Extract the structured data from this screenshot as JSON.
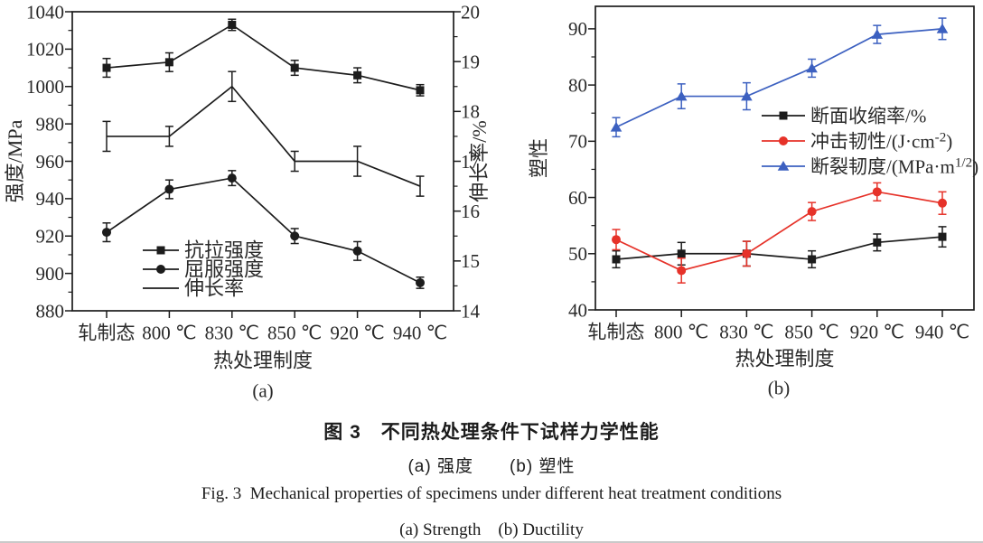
{
  "figure": {
    "caption_cn": "图 3　不同热处理条件下试样力学性能",
    "caption_cn_sub": "(a) 强度　　(b) 塑性",
    "caption_en": "Fig. 3 Mechanical properties of specimens under different heat treatment conditions",
    "caption_en_sub": "(a) Strength　(b) Ductility"
  },
  "colors": {
    "black": "#1c1c1c",
    "red": "#e63229",
    "blue": "#3c60c0",
    "text": "#2a2a2a",
    "rule_gray": "#c9c9c9"
  },
  "chart_data": [
    {
      "id": "a",
      "type": "line",
      "panel_label": "(a)",
      "categories": [
        "轧制态",
        "800 ℃",
        "830 ℃",
        "850 ℃",
        "920 ℃",
        "940 ℃"
      ],
      "xlabel": "热处理制度",
      "y_left": {
        "label": "强度/MPa",
        "min": 880,
        "max": 1040,
        "major_step": 20,
        "minor_step": 10
      },
      "y_right": {
        "label": "伸长率/%",
        "min": 14,
        "max": 20,
        "major_step": 1,
        "minor_step": 0.5
      },
      "grid": false,
      "legend_position": "inside-lower-left",
      "series": [
        {
          "key": "tensile-strength",
          "name": "抗拉强度",
          "axis": "left",
          "marker": "square",
          "color": "#1c1c1c",
          "values": [
            1010,
            1013,
            1033,
            1010,
            1006,
            998
          ],
          "errors": [
            5,
            5,
            3,
            4,
            4,
            3
          ]
        },
        {
          "key": "yield-strength",
          "name": "屈服强度",
          "axis": "left",
          "marker": "circle",
          "color": "#1c1c1c",
          "values": [
            922,
            945,
            951,
            920,
            912,
            895
          ],
          "errors": [
            5,
            5,
            4,
            4,
            5,
            3
          ]
        },
        {
          "key": "elongation",
          "name": "伸长率",
          "axis": "right",
          "marker": "none",
          "color": "#1c1c1c",
          "values": [
            17.5,
            17.5,
            18.5,
            17.0,
            17.0,
            16.5
          ],
          "errors": [
            0.3,
            0.2,
            0.3,
            0.2,
            0.3,
            0.2
          ]
        }
      ]
    },
    {
      "id": "b",
      "type": "line",
      "panel_label": "(b)",
      "categories": [
        "轧制态",
        "800 ℃",
        "830 ℃",
        "850 ℃",
        "920 ℃",
        "940 ℃"
      ],
      "xlabel": "热处理制度",
      "y_left": {
        "label": "塑性",
        "min": 40,
        "max": 94,
        "major_step": 10,
        "minor_step": 5,
        "label_max": 90
      },
      "grid": false,
      "legend_position": "inside-middle-right",
      "series": [
        {
          "key": "reduction-of-area",
          "name": "断面收缩率/%",
          "axis": "left",
          "marker": "square",
          "color": "#1c1c1c",
          "values": [
            49,
            50,
            50,
            49,
            52,
            53
          ],
          "errors": [
            1.5,
            2.0,
            2.2,
            1.5,
            1.5,
            1.8
          ]
        },
        {
          "key": "impact-toughness",
          "name": "冲击韧性/(J·cm^{-2})",
          "axis": "left",
          "marker": "circle",
          "color": "#e63229",
          "values": [
            52.5,
            47,
            50,
            57.5,
            61,
            59
          ],
          "errors": [
            1.8,
            2.2,
            2.2,
            1.6,
            1.6,
            2.0
          ]
        },
        {
          "key": "fracture-toughness",
          "name": "断裂韧度/(MPa·m^{1/2})",
          "axis": "left",
          "marker": "triangle",
          "color": "#3c60c0",
          "values": [
            72.5,
            78,
            78,
            83,
            89,
            90
          ],
          "errors": [
            1.7,
            2.2,
            2.4,
            1.6,
            1.6,
            1.9
          ]
        }
      ]
    }
  ]
}
